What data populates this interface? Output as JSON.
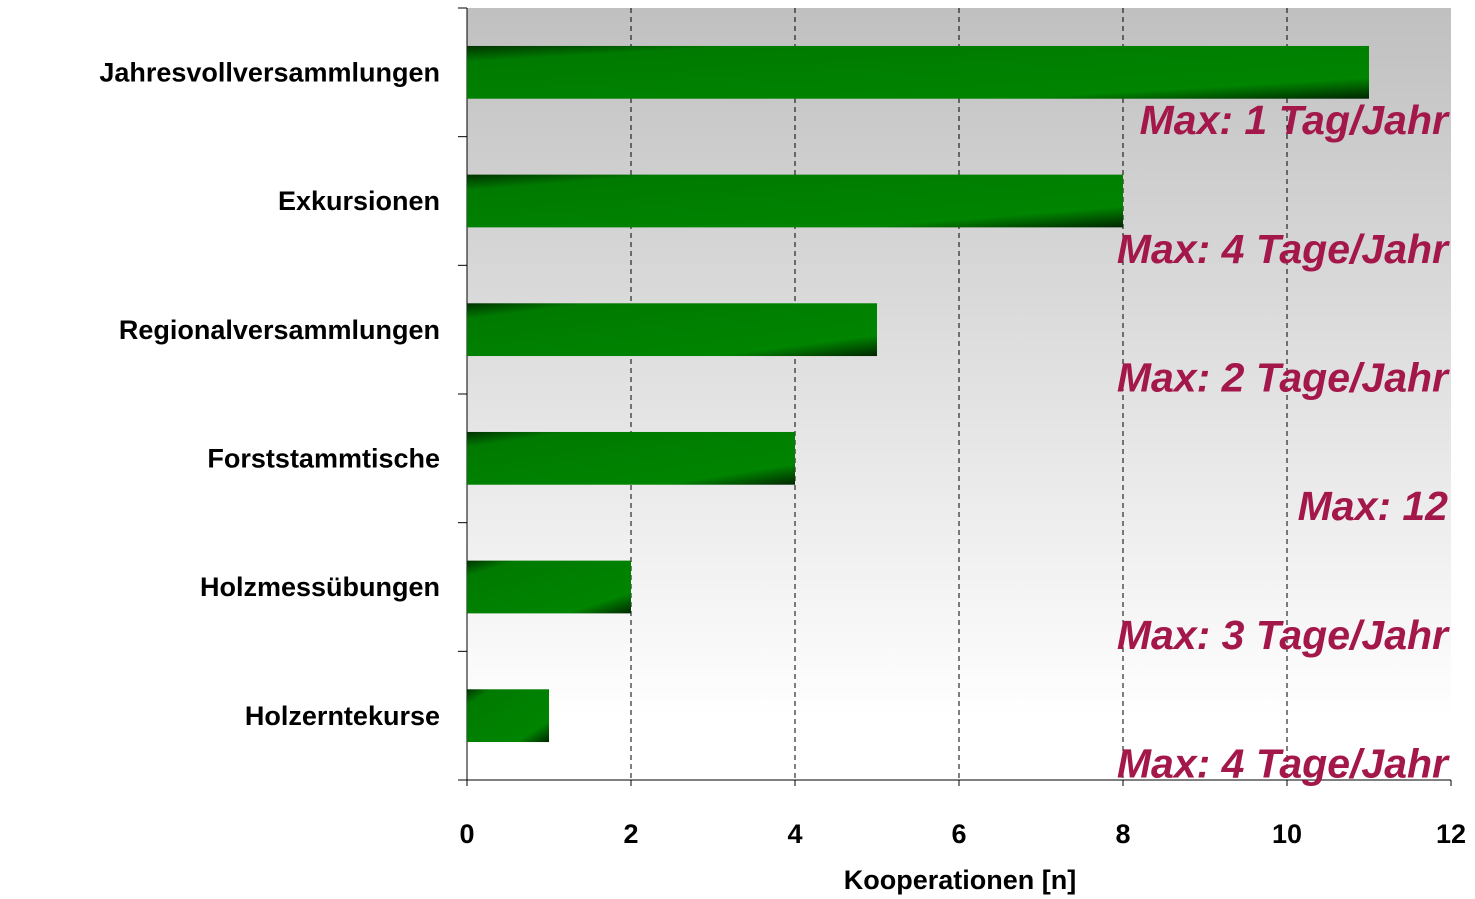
{
  "chart_data": {
    "type": "bar",
    "orientation": "horizontal",
    "categories": [
      "Jahresvollversammlungen",
      "Exkursionen",
      "Regionalversammlungen",
      "Forststammtische",
      "Holzmessübungen",
      "Holzerntekurse"
    ],
    "values": [
      11,
      8,
      5,
      4,
      2,
      1
    ],
    "color": "#008000",
    "xlabel": "Kooperationen [n]",
    "xlim": [
      0,
      12
    ],
    "xticks": [
      0,
      2,
      4,
      6,
      8,
      10,
      12
    ],
    "grid": true,
    "annotations": [
      "Max: 1 Tag/Jahr",
      "Max: 4 Tage/Jahr",
      "Max: 2 Tage/Jahr",
      "Max: 12",
      "Max: 3 Tage/Jahr",
      "Max: 4 Tage/Jahr"
    ],
    "annotation_color": "#a3174a"
  }
}
